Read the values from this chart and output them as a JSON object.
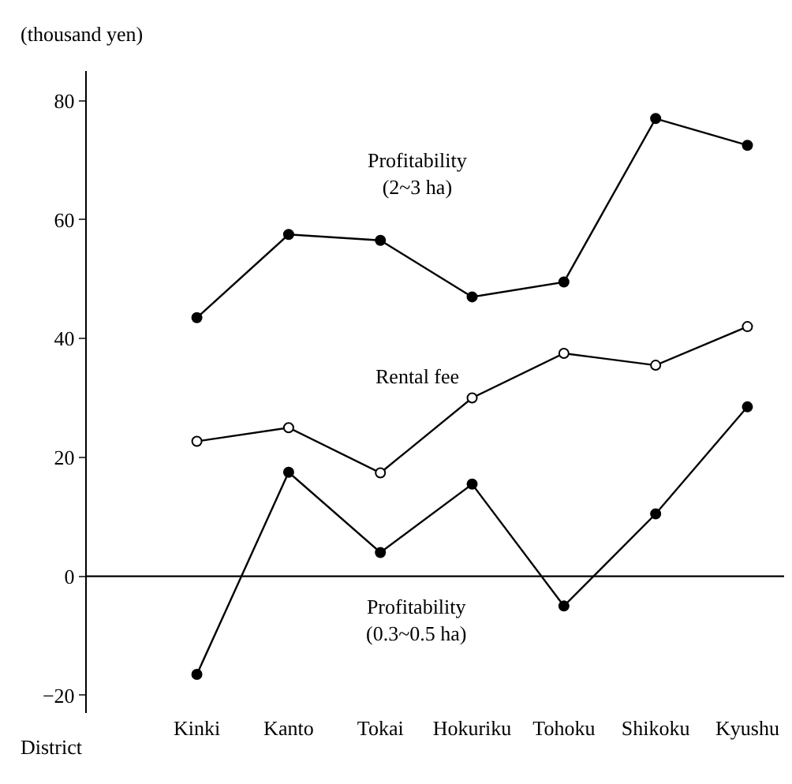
{
  "chart_data": {
    "type": "line",
    "ylabel": "(thousand yen)",
    "xlabel": "District",
    "categories": [
      "Kinki",
      "Kanto",
      "Tokai",
      "Hokuriku",
      "Tohoku",
      "Shikoku",
      "Kyushu"
    ],
    "series": [
      {
        "name": "Profitability\n(2~3 ha)",
        "color": "#000000",
        "values": [
          43.5,
          57.5,
          56.5,
          47,
          49.5,
          77,
          72.5
        ]
      },
      {
        "name": "Rental fee",
        "color": "#000000",
        "colors": [
          "#ffffff",
          "#ffffff",
          "#ffffff",
          "#ffffff",
          "#ffffff",
          "#ffffff",
          "#ffffff"
        ],
        "values": [
          22.7,
          25,
          17.4,
          30,
          37.5,
          35.5,
          42
        ]
      },
      {
        "name": "Profitability\n(0.3~0.5 ha)",
        "color": "#000000",
        "values": [
          -16.5,
          17.5,
          4,
          15.5,
          -5,
          10.5,
          28.5
        ]
      }
    ],
    "ylim": [
      -23,
      85
    ],
    "yticks": [
      -20,
      0,
      20,
      40,
      60,
      80
    ],
    "ref_lines": [
      {
        "axis": "y",
        "value": 0,
        "label": null,
        "color": "#000000"
      }
    ],
    "marker": "circle",
    "line_style": "solid",
    "legend": false
  }
}
